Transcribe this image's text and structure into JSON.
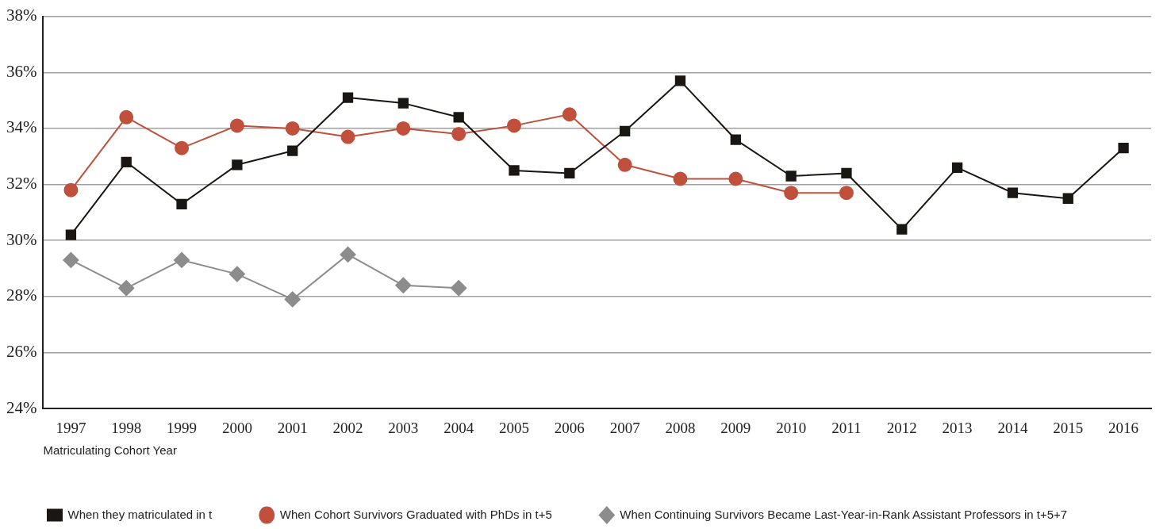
{
  "chart_data": {
    "type": "line",
    "xlabel": "Matriculating Cohort Year",
    "categories": [
      "1997",
      "1998",
      "1999",
      "2000",
      "2001",
      "2002",
      "2003",
      "2004",
      "2005",
      "2006",
      "2007",
      "2008",
      "2009",
      "2010",
      "2011",
      "2012",
      "2013",
      "2014",
      "2015",
      "2016"
    ],
    "ylim": [
      24,
      38
    ],
    "yticks": [
      {
        "value": 24,
        "label": "24%"
      },
      {
        "value": 26,
        "label": "26%"
      },
      {
        "value": 28,
        "label": "28%"
      },
      {
        "value": 30,
        "label": "30%"
      },
      {
        "value": 32,
        "label": "32%"
      },
      {
        "value": 34,
        "label": "34%"
      },
      {
        "value": 36,
        "label": "36%"
      },
      {
        "value": 38,
        "label": "38%"
      }
    ],
    "grid": "y",
    "legend": "bottom",
    "line_style": "solid",
    "series": [
      {
        "name": "When they matriculated in t",
        "color": "#1a1612",
        "marker": "square",
        "values": [
          30.2,
          32.8,
          31.3,
          32.7,
          33.2,
          35.1,
          34.9,
          34.4,
          32.5,
          32.4,
          33.9,
          35.7,
          33.6,
          32.3,
          32.4,
          30.4,
          32.6,
          31.7,
          31.5,
          33.3
        ]
      },
      {
        "name": "When Cohort Survivors Graduated with PhDs in t+5",
        "color": "#c0503c",
        "marker": "circle",
        "values": [
          31.8,
          34.4,
          33.3,
          34.1,
          34.0,
          33.7,
          34.0,
          33.8,
          34.1,
          34.5,
          32.7,
          32.2,
          32.2,
          31.7,
          31.7,
          null,
          null,
          null,
          null,
          null
        ]
      },
      {
        "name": "When Continuing Survivors Became Last-Year-in-Rank Assistant Professors in t+5+7",
        "color": "#8c8c8c",
        "marker": "diamond",
        "values": [
          29.3,
          28.3,
          29.3,
          28.8,
          27.9,
          29.5,
          28.4,
          28.3,
          null,
          null,
          null,
          null,
          null,
          null,
          null,
          null,
          null,
          null,
          null,
          null
        ]
      }
    ]
  }
}
